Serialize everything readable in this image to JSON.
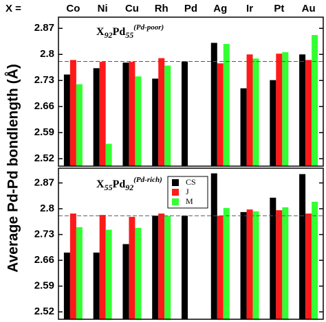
{
  "chart_data": {
    "type": "bar",
    "x_label": "X =",
    "y_label": "Average Pd-Pd bondlength (Å)",
    "categories": [
      "Co",
      "Ni",
      "Cu",
      "Rh",
      "Pd",
      "Ag",
      "Ir",
      "Pt",
      "Au"
    ],
    "legend": "inside",
    "panels": [
      {
        "annotation": [
          "X",
          "92",
          "Pd",
          "55",
          "(Pd-poor)"
        ],
        "ylim": [
          2.5,
          2.9
        ],
        "yticks": [
          2.52,
          2.59,
          2.66,
          2.73,
          2.8,
          2.87
        ],
        "reference_line": 2.781,
        "series": [
          {
            "name": "CS",
            "color": "#000000",
            "values": [
              2.746,
              2.763,
              2.778,
              2.735,
              2.781,
              2.831,
              2.709,
              2.731,
              2.8
            ]
          },
          {
            "name": "J",
            "color": "#ff1a1a",
            "values": [
              2.785,
              2.78,
              2.78,
              2.79,
              null,
              2.776,
              2.8,
              2.802,
              2.785
            ]
          },
          {
            "name": "M",
            "color": "#33ff33",
            "values": [
              2.72,
              2.56,
              2.741,
              2.77,
              null,
              2.828,
              2.789,
              2.806,
              2.852
            ]
          }
        ]
      },
      {
        "annotation": [
          "X",
          "55",
          "Pd",
          "92",
          "(Pd-rich)"
        ],
        "ylim": [
          2.5,
          2.91
        ],
        "yticks": [
          2.52,
          2.59,
          2.66,
          2.73,
          2.8,
          2.87
        ],
        "reference_line": 2.781,
        "series": [
          {
            "name": "CS",
            "color": "#000000",
            "values": [
              2.681,
              2.681,
              2.704,
              2.781,
              2.781,
              2.896,
              2.791,
              2.83,
              2.894
            ]
          },
          {
            "name": "J",
            "color": "#ff1a1a",
            "values": [
              2.787,
              2.783,
              2.778,
              2.787,
              null,
              2.781,
              2.798,
              2.796,
              2.787
            ]
          },
          {
            "name": "M",
            "color": "#33ff33",
            "values": [
              2.75,
              2.743,
              2.748,
              2.781,
              null,
              2.802,
              2.793,
              2.804,
              2.819
            ]
          }
        ]
      }
    ]
  }
}
